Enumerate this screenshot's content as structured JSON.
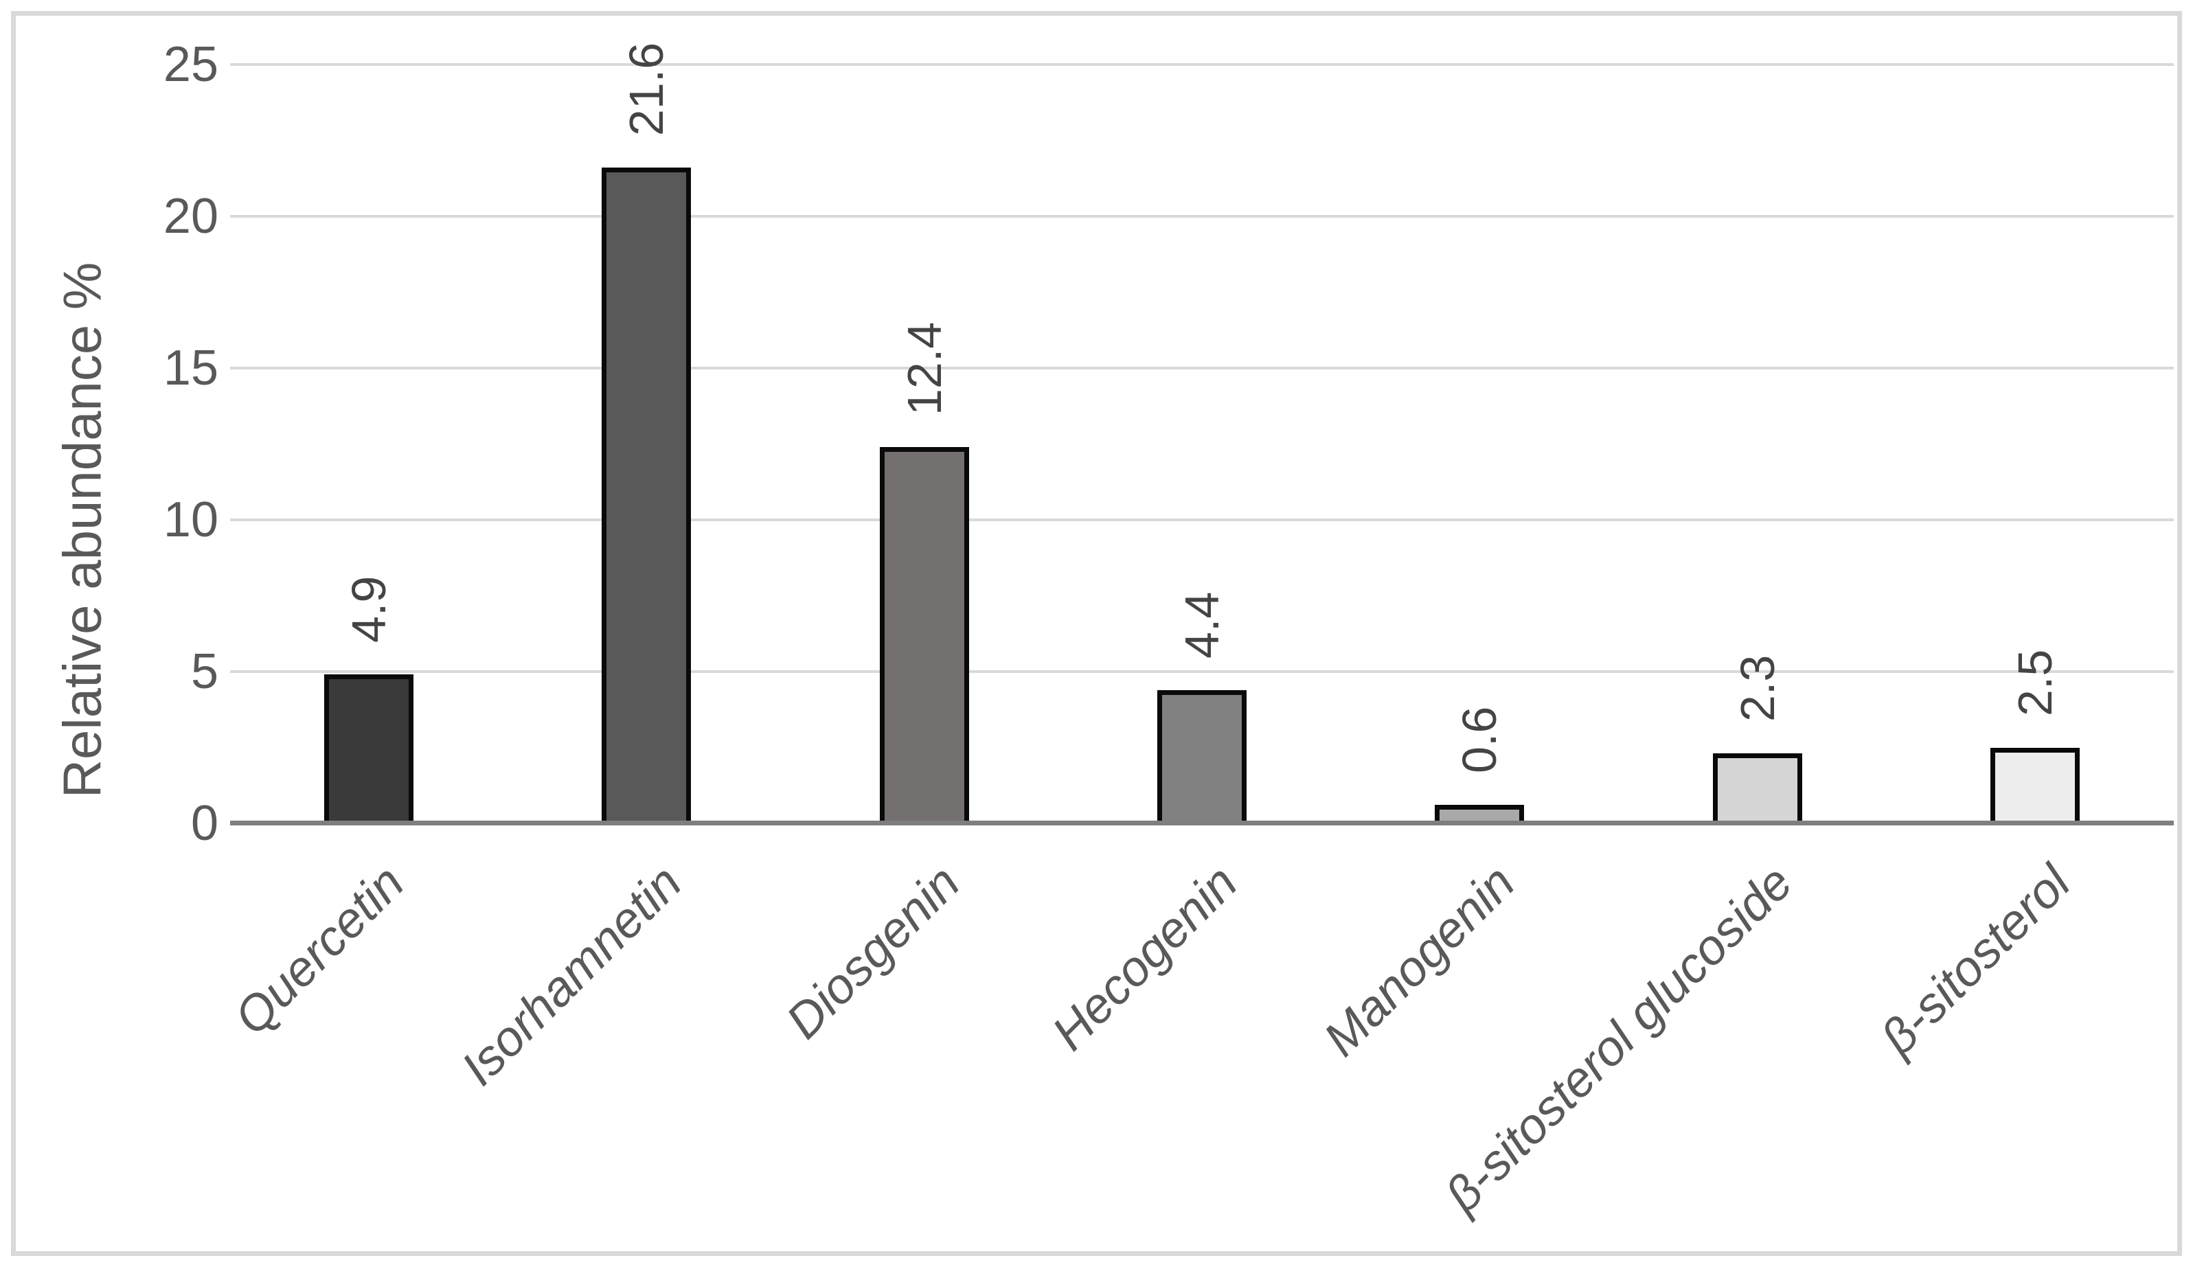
{
  "figure": {
    "background_color": "#ffffff",
    "frame_border_color": "#d9d9d9"
  },
  "chart_data": {
    "type": "bar",
    "title": "",
    "xlabel": "",
    "ylabel": "Relative abundance %",
    "categories": [
      "Quercetin",
      "Isorhamnetin",
      "Diosgenin",
      "Hecogenin",
      "Manogenin",
      "β-sitosterol glucoside",
      "β-sitosterol"
    ],
    "values": [
      4.9,
      21.6,
      12.4,
      4.4,
      0.6,
      2.3,
      2.5
    ],
    "data_labels": [
      "4.9",
      "21.6",
      "12.4",
      "4.4",
      "0.6",
      "2.3",
      "2.5"
    ],
    "ylim": [
      0,
      25
    ],
    "yticks": [
      0,
      5,
      10,
      15,
      20,
      25
    ],
    "grid": "horizontal-major",
    "legend": "none",
    "data_label_rotation_deg": -90,
    "category_label_rotation_deg": -45,
    "category_label_style": "italic",
    "bar_colors": [
      "#3a3a3a",
      "#595959",
      "#757070",
      "#818181",
      "#a9a9a9",
      "#d5d5d5",
      "#ededed"
    ],
    "bar_border_color": "#0a0a0a",
    "gridline_color": "#d9d9d9",
    "axis_line_color": "#7f7f7f",
    "tick_label_color": "#595959",
    "data_label_color": "#444444",
    "category_label_color": "#595959"
  }
}
